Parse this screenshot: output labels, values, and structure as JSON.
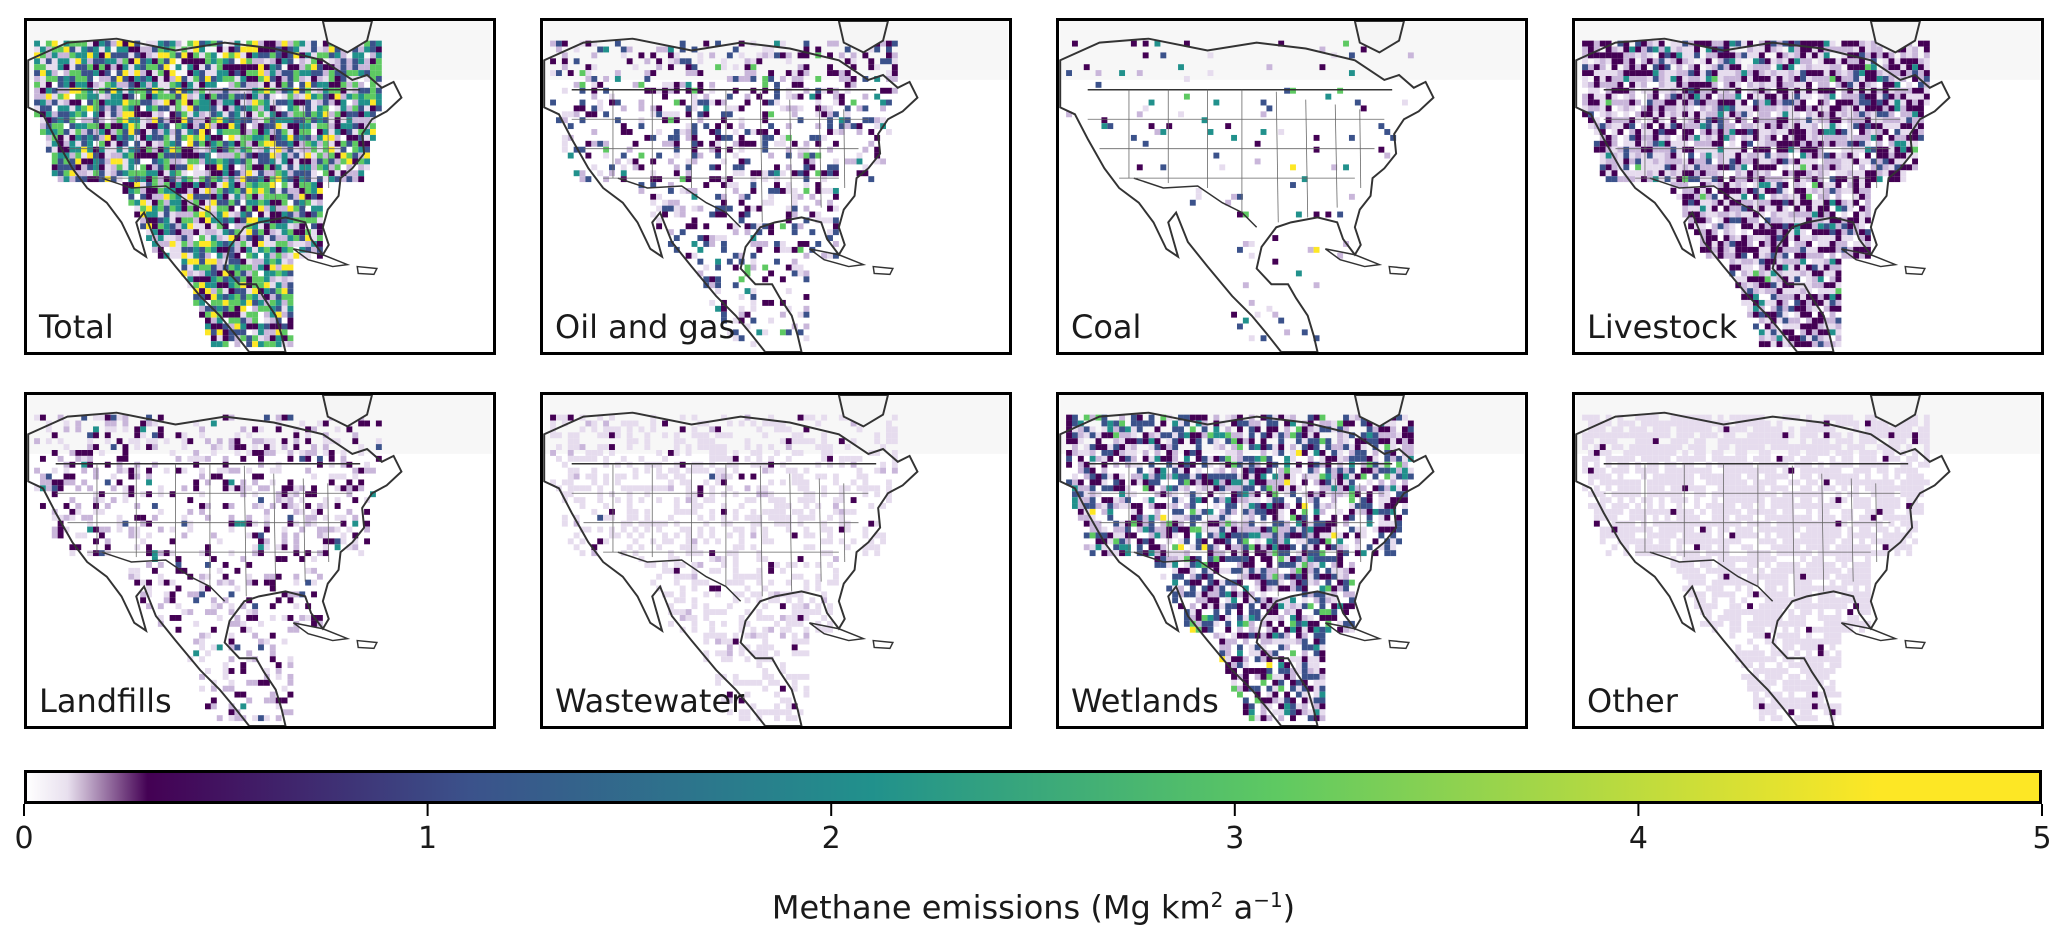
{
  "panels": [
    {
      "id": "total",
      "label": "Total",
      "density": 0.95,
      "intensity": 0.85
    },
    {
      "id": "oil-gas",
      "label": "Oil and gas",
      "density": 0.35,
      "intensity": 0.55
    },
    {
      "id": "coal",
      "label": "Coal",
      "density": 0.06,
      "intensity": 0.7
    },
    {
      "id": "livestock",
      "label": "Livestock",
      "density": 0.9,
      "intensity": 0.45
    },
    {
      "id": "landfills",
      "label": "Landfills",
      "density": 0.35,
      "intensity": 0.4
    },
    {
      "id": "wastewater",
      "label": "Wastewater",
      "density": 0.4,
      "intensity": 0.15
    },
    {
      "id": "wetlands",
      "label": "Wetlands",
      "density": 0.75,
      "intensity": 0.6
    },
    {
      "id": "other",
      "label": "Other",
      "density": 0.75,
      "intensity": 0.12
    }
  ],
  "colorbar": {
    "title_main": "Methane emissions (Mg km",
    "title_sup1": "2",
    "title_mid": " a",
    "title_sup2": "−1",
    "title_end": ")",
    "ticks": [
      "0",
      "1",
      "2",
      "3",
      "4",
      "5"
    ],
    "range": [
      0,
      5
    ],
    "colors": [
      "#ffffff",
      "#e8e0ee",
      "#440154",
      "#3b528b",
      "#21918c",
      "#5ec962",
      "#fde725"
    ]
  }
}
